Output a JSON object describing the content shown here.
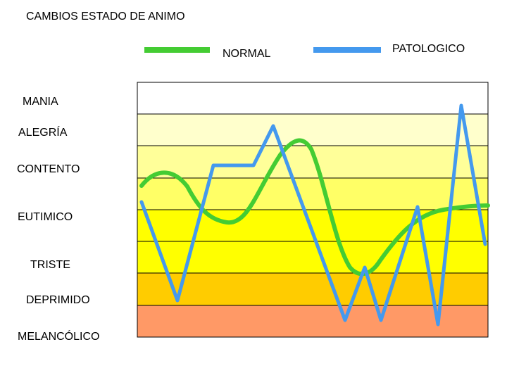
{
  "title": "CAMBIOS  ESTADO DE ANIMO",
  "legend": {
    "normal": {
      "label": "NORMAL",
      "color": "#44cc33"
    },
    "patologico": {
      "label": "PATOLOGICO",
      "color": "#4499ee"
    }
  },
  "mood_levels": [
    "MANIA",
    "ALEGRÍA",
    "CONTENTO",
    "EUTIMICO",
    "TRISTE",
    "DEPRIMIDO",
    "MELANCÓLICO"
  ],
  "band_colors": [
    "#ffffff",
    "#ffffcc",
    "#ffff99",
    "#ffff66",
    "#ffff00",
    "#ffff00",
    "#ffcc00",
    "#ff9966",
    "#ff5555"
  ]
}
